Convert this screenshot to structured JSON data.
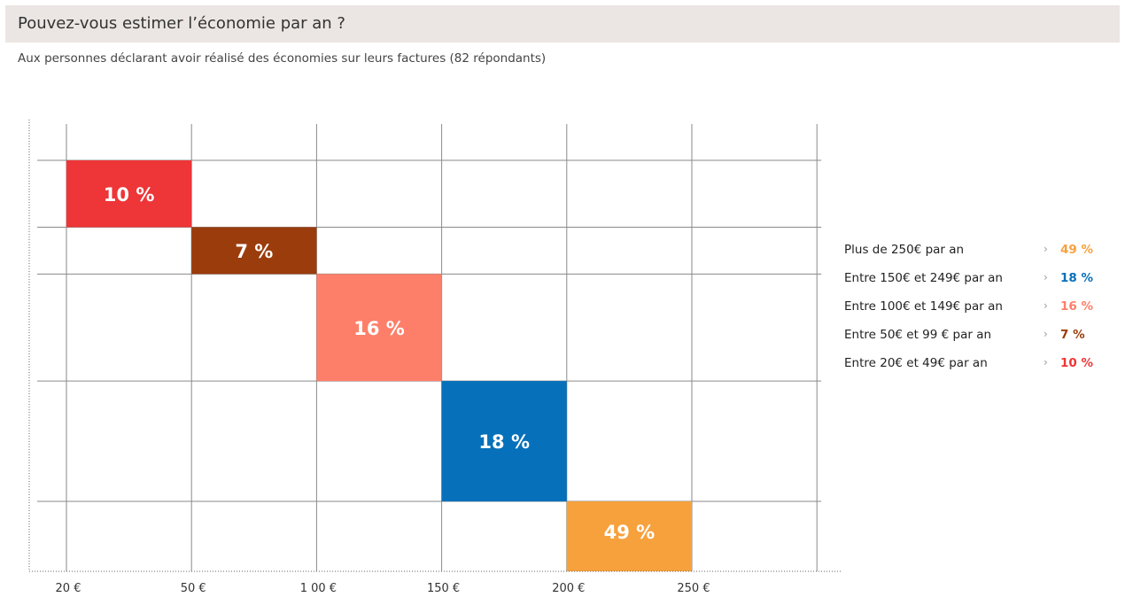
{
  "header": {
    "title": "Pouvez-vous estimer l’économie par an ?",
    "subtitle": "Aux personnes déclarant avoir réalisé des économies sur leurs factures (82 répondants)"
  },
  "colors": {
    "header_bg": "#ebe6e3",
    "red": "#ee3537",
    "brown": "#9b3c0c",
    "salmon": "#fd7f6a",
    "blue": "#0770bb",
    "orange": "#f7a13d"
  },
  "chart_data": {
    "type": "bar",
    "title": "",
    "xlabel": "",
    "ylabel": "",
    "x_ticks": [
      "20 €",
      "50 €",
      "1 00 €",
      "150 €",
      "200 €",
      "250 €"
    ],
    "grid": true,
    "legend_position": "right",
    "bars": [
      {
        "category": "Entre 20€ et 49€ par an",
        "value": 10,
        "label": "10 %",
        "color": "#ee3537"
      },
      {
        "category": "Entre 50€ et 99 € par an",
        "value": 7,
        "label": "7 %",
        "color": "#9b3c0c"
      },
      {
        "category": "Entre 100€ et 149€ par an",
        "value": 16,
        "label": "16 %",
        "color": "#fd7f6a"
      },
      {
        "category": "Entre 150€ et 249€ par an",
        "value": 18,
        "label": "18 %",
        "color": "#0770bb"
      },
      {
        "category": "Plus de 250€ par an",
        "value": 49,
        "label": "49 %",
        "color": "#f7a13d"
      }
    ]
  },
  "legend": [
    {
      "label": "Plus de 250€ par an",
      "value": "49 %",
      "color": "#f7a13d"
    },
    {
      "label": "Entre 150€ et 249€ par an",
      "value": "18 %",
      "color": "#0770bb"
    },
    {
      "label": "Entre 100€ et 149€ par an",
      "value": "16 %",
      "color": "#fd7f6a"
    },
    {
      "label": "Entre 50€ et 99 € par an",
      "value": "7 %",
      "color": "#9b3c0c"
    },
    {
      "label": "Entre 20€ et 49€ par an",
      "value": "10 %",
      "color": "#ee3537"
    }
  ],
  "legend_arrow": "›"
}
